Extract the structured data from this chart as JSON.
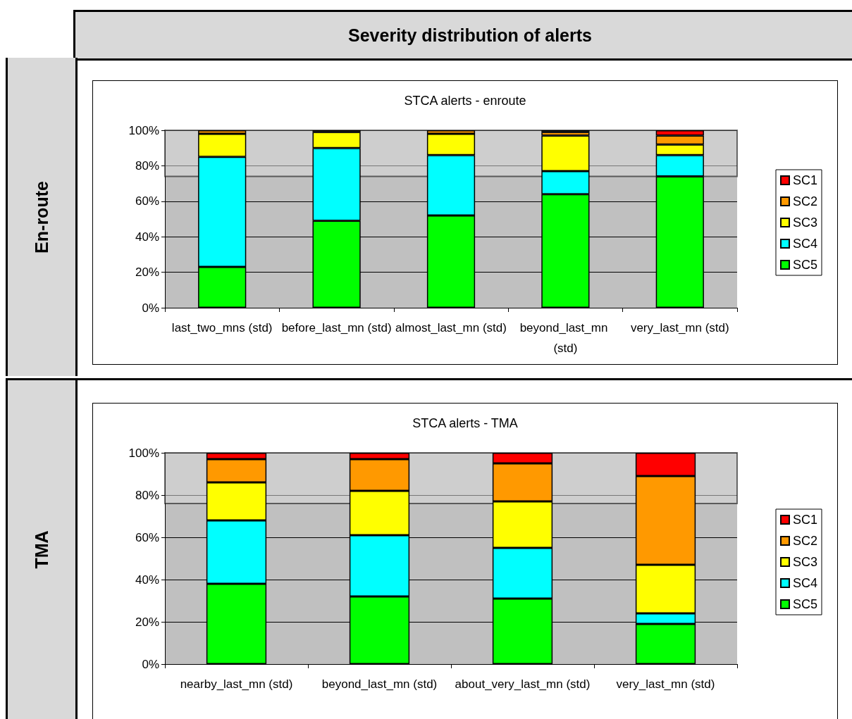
{
  "chart_data": [
    {
      "type": "bar",
      "stacked": true,
      "title": "STCA alerts - enroute",
      "ylabel": "En-route",
      "annotations": [
        "Severity distribution of alerts"
      ],
      "categories": [
        "last_two_mns (std)",
        "before_last_mn (std)",
        "almost_last_mn (std)",
        "beyond_last_mn (std)",
        "very_last_mn (std)"
      ],
      "series": [
        {
          "name": "SC5",
          "color": "#00ff00",
          "values": [
            23,
            49,
            52,
            64,
            74
          ]
        },
        {
          "name": "SC4",
          "color": "#00ffff",
          "values": [
            62,
            41,
            34,
            13,
            12
          ]
        },
        {
          "name": "SC3",
          "color": "#ffff00",
          "values": [
            13,
            9,
            12,
            20,
            6
          ]
        },
        {
          "name": "SC2",
          "color": "#ff9900",
          "values": [
            2,
            1,
            2,
            2,
            5
          ]
        },
        {
          "name": "SC1",
          "color": "#ff0000",
          "values": [
            null,
            null,
            null,
            1,
            3
          ]
        }
      ],
      "ylim": [
        0,
        100
      ],
      "yticks": [
        {
          "value": 0,
          "label": "0%"
        },
        {
          "value": 20,
          "label": "20%"
        },
        {
          "value": 40,
          "label": "40%"
        },
        {
          "value": 60,
          "label": "60%"
        },
        {
          "value": 80,
          "label": "80%"
        },
        {
          "value": 100,
          "label": "100%"
        }
      ],
      "grid": "y",
      "legend": "right",
      "bands": [
        {
          "axis": "y",
          "from": 74,
          "to": 100,
          "color": "#d9d9d9"
        }
      ]
    },
    {
      "type": "bar",
      "stacked": true,
      "title": "STCA alerts - TMA",
      "ylabel": "TMA",
      "categories": [
        "nearby_last_mn (std)",
        "beyond_last_mn (std)",
        "about_very_last_mn (std)",
        "very_last_mn (std)"
      ],
      "series": [
        {
          "name": "SC5",
          "color": "#00ff00",
          "values": [
            38,
            32,
            31,
            19
          ]
        },
        {
          "name": "SC4",
          "color": "#00ffff",
          "values": [
            30,
            29,
            24,
            5
          ]
        },
        {
          "name": "SC3",
          "color": "#ffff00",
          "values": [
            18,
            21,
            22,
            23
          ]
        },
        {
          "name": "SC2",
          "color": "#ff9900",
          "values": [
            11,
            15,
            18,
            42
          ]
        },
        {
          "name": "SC1",
          "color": "#ff0000",
          "values": [
            3,
            3,
            5,
            11
          ]
        }
      ],
      "ylim": [
        0,
        100
      ],
      "yticks": [
        {
          "value": 0,
          "label": "0%"
        },
        {
          "value": 20,
          "label": "20%"
        },
        {
          "value": 40,
          "label": "40%"
        },
        {
          "value": 60,
          "label": "60%"
        },
        {
          "value": 80,
          "label": "80%"
        },
        {
          "value": 100,
          "label": "100%"
        }
      ],
      "grid": "y",
      "legend": "right",
      "bands": [
        {
          "axis": "y",
          "from": 76,
          "to": 100,
          "color": "#d9d9d9"
        }
      ]
    }
  ]
}
